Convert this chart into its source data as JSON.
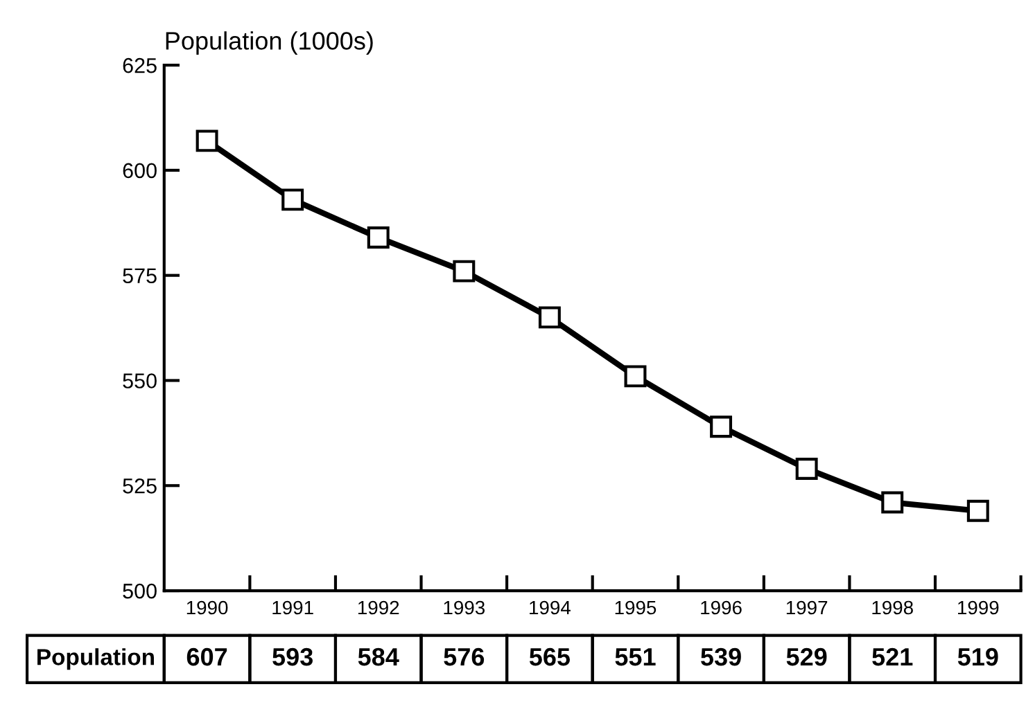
{
  "chart_data": {
    "type": "line",
    "ylabel": "Population (1000s)",
    "categories": [
      "1990",
      "1991",
      "1992",
      "1993",
      "1994",
      "1995",
      "1996",
      "1997",
      "1998",
      "1999"
    ],
    "series": [
      {
        "name": "Population",
        "color": "#000000",
        "values": [
          607,
          593,
          584,
          576,
          565,
          551,
          539,
          529,
          521,
          519
        ]
      }
    ],
    "ylim": [
      500,
      625
    ],
    "yticks": [
      500,
      525,
      550,
      575,
      600,
      625
    ],
    "grid": false,
    "legend": "bottom",
    "marker": "square",
    "line_style": "solid",
    "data_labels": true
  }
}
